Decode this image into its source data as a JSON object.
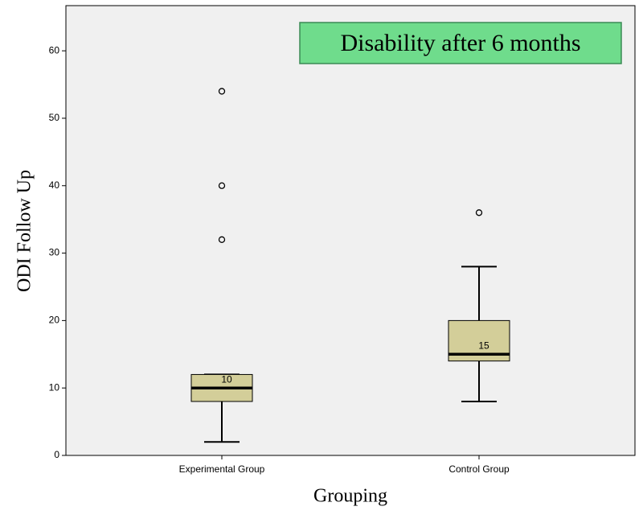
{
  "chart_data": {
    "type": "box",
    "title": "Disability after 6 months",
    "x_label": "Grouping",
    "y_label": "ODI Follow Up",
    "categories": [
      "Experimental Group",
      "Control Group"
    ],
    "boxes": [
      {
        "whisker_low": 2,
        "q1": 8,
        "median": 10,
        "q3": 12,
        "whisker_high": 12,
        "outliers": [
          32,
          40,
          54
        ]
      },
      {
        "whisker_low": 8,
        "q1": 14,
        "median": 15,
        "q3": 20,
        "whisker_high": 28,
        "outliers": [
          36
        ]
      }
    ],
    "box_color": "#d3ce99",
    "ylim": [
      0,
      66.7
    ],
    "yticks": [
      0,
      10,
      20,
      30,
      40,
      50,
      60
    ]
  }
}
